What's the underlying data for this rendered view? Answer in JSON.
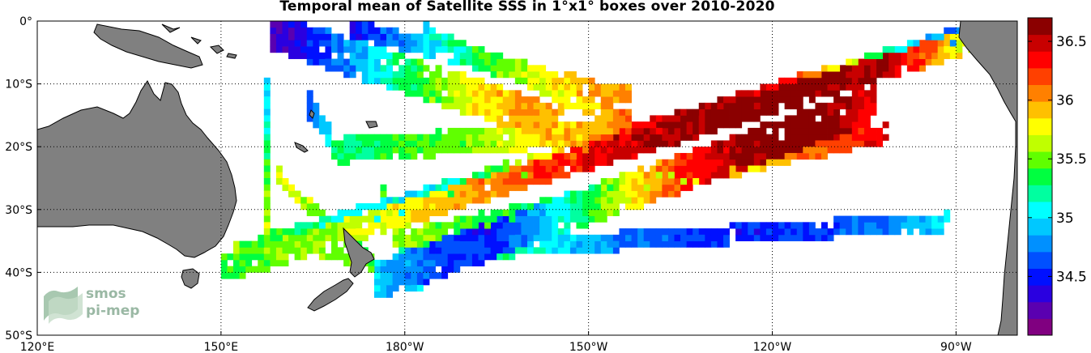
{
  "title": "Temporal mean of Satellite SSS in 1°x1° boxes over 2010-2020",
  "map": {
    "extent": {
      "lon_min": 120,
      "lon_max": 280,
      "lat_min": -50,
      "lat_max": 0
    },
    "x_ticks": [
      {
        "lon": 120,
        "label": "120°E"
      },
      {
        "lon": 150,
        "label": "150°E"
      },
      {
        "lon": 180,
        "label": "180°W"
      },
      {
        "lon": 210,
        "label": "150°W"
      },
      {
        "lon": 240,
        "label": "120°W"
      },
      {
        "lon": 270,
        "label": "90°W"
      }
    ],
    "y_ticks": [
      {
        "lat": 0,
        "label": "0°"
      },
      {
        "lat": -10,
        "label": "10°S"
      },
      {
        "lat": -20,
        "label": "20°S"
      },
      {
        "lat": -30,
        "label": "30°S"
      },
      {
        "lat": -40,
        "label": "40°S"
      },
      {
        "lat": -50,
        "label": "50°S"
      }
    ],
    "grid": "dotted",
    "land_color": "#808080",
    "ocean_color": "#ffffff"
  },
  "colorbar": {
    "min": 34.0,
    "max": 36.7,
    "ticks": [
      {
        "value": 34.5,
        "label": "34.5"
      },
      {
        "value": 35.0,
        "label": "35"
      },
      {
        "value": 35.5,
        "label": "35.5"
      },
      {
        "value": 36.0,
        "label": "36"
      },
      {
        "value": 36.5,
        "label": "36.5"
      }
    ],
    "colors": [
      "#800080",
      "#5a00b0",
      "#2a00e0",
      "#0010ff",
      "#0050ff",
      "#0090ff",
      "#00c8ff",
      "#00ffff",
      "#00ffa0",
      "#00ff40",
      "#60ff00",
      "#c0ff00",
      "#ffff00",
      "#ffc000",
      "#ff8000",
      "#ff4000",
      "#ff0000",
      "#c80000",
      "#8b0000"
    ]
  },
  "logo": {
    "line1": "smos",
    "line2": "pi-mep"
  },
  "tracks": [
    {
      "lon0": 150,
      "lat0": -39,
      "lon1": 278,
      "lat1": -1,
      "width": 4,
      "sal": [
        35.4,
        35.6,
        35.9,
        36.3,
        36.6,
        36.7,
        36.5,
        35.2
      ]
    },
    {
      "lon0": 152,
      "lat0": -37,
      "lon1": 272,
      "lat1": -2,
      "width": 3,
      "sal": [
        35.5,
        35.2,
        35.0,
        35.5,
        36.2,
        36.6,
        36.4,
        35.3,
        34.6
      ]
    },
    {
      "lon0": 175,
      "lat0": -41,
      "lon1": 256,
      "lat1": -13,
      "width": 6,
      "sal": [
        35.0,
        34.6,
        34.5,
        35.1,
        35.7,
        36.3,
        36.6,
        36.7,
        36.4
      ]
    },
    {
      "lon0": 178,
      "lat0": -35,
      "lon1": 258,
      "lat1": -18,
      "width": 3,
      "sal": [
        35.6,
        35.4,
        35.3,
        35.5,
        35.8,
        36.1,
        36.4
      ]
    },
    {
      "lon0": 180,
      "lat0": -37,
      "lon1": 268,
      "lat1": -32,
      "width": 3,
      "sal": [
        35.3,
        35.2,
        34.7,
        34.5,
        34.6,
        35.0
      ]
    },
    {
      "lon0": 158,
      "lat0": -1,
      "lon1": 205,
      "lat1": -16,
      "width": 6,
      "sal": [
        34.2,
        34.5,
        34.8,
        35.2,
        35.5,
        35.8,
        36.0,
        35.9
      ]
    },
    {
      "lon0": 171,
      "lat0": -1,
      "lon1": 216,
      "lat1": -12,
      "width": 3,
      "sal": [
        34.4,
        34.8,
        35.2,
        35.6,
        35.9,
        36.0
      ]
    },
    {
      "lon0": 183,
      "lat0": -2,
      "lon1": 216,
      "lat1": -16,
      "width": 3,
      "sal": [
        35.0,
        35.4,
        35.6,
        35.8,
        36.1
      ]
    },
    {
      "lon0": 170,
      "lat0": -20,
      "lon1": 215,
      "lat1": -17,
      "width": 4,
      "sal": [
        35.2,
        35.4,
        35.5,
        35.7,
        35.9,
        36.0
      ]
    },
    {
      "lon0": 157,
      "lat0": -10,
      "lon1": 157,
      "lat1": -39,
      "width": 2,
      "sal": [
        34.9,
        35.2,
        35.5,
        35.7,
        35.6
      ]
    },
    {
      "lon0": 159,
      "lat0": -24,
      "lon1": 176,
      "lat1": -39,
      "width": 2,
      "sal": [
        35.7,
        35.6,
        35.4,
        35.3
      ]
    },
    {
      "lon0": 158,
      "lat0": -34,
      "lon1": 182,
      "lat1": -40,
      "width": 2,
      "sal": [
        35.4,
        35.6,
        35.5,
        35.3
      ]
    },
    {
      "lon0": 164,
      "lat0": -13,
      "lon1": 170,
      "lat1": -22,
      "width": 3,
      "sal": [
        34.6,
        34.9,
        35.2,
        35.4
      ]
    },
    {
      "lon0": 176,
      "lat0": -27,
      "lon1": 182,
      "lat1": -42,
      "width": 2,
      "sal": [
        35.4,
        35.2,
        35.0
      ]
    }
  ]
}
